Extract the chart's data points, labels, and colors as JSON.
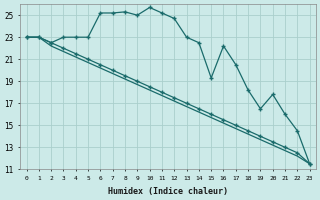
{
  "xlabel": "Humidex (Indice chaleur)",
  "background_color": "#cceae8",
  "grid_color": "#aacfcc",
  "line_color": "#1a6b6b",
  "xlim": [
    -0.5,
    23.5
  ],
  "ylim": [
    11,
    26
  ],
  "yticks": [
    11,
    13,
    15,
    17,
    19,
    21,
    23,
    25
  ],
  "xticks": [
    0,
    1,
    2,
    3,
    4,
    5,
    6,
    7,
    8,
    9,
    10,
    11,
    12,
    13,
    14,
    15,
    16,
    17,
    18,
    19,
    20,
    21,
    22,
    23
  ],
  "series1_x": [
    0,
    1,
    2,
    3,
    4,
    5,
    6,
    7,
    8,
    9,
    10,
    11,
    12,
    13,
    14,
    15,
    16,
    17,
    18,
    19,
    20,
    21,
    22,
    23
  ],
  "series1_y": [
    23,
    23,
    22.5,
    23,
    23,
    23,
    25.2,
    25.2,
    25.3,
    25,
    25.7,
    25.2,
    24.7,
    23,
    22.5,
    19.3,
    22.2,
    20.5,
    18.2,
    16.5,
    17.8,
    16,
    14.5,
    11.5
  ],
  "series2_x": [
    0,
    1,
    2,
    3,
    4,
    5,
    6,
    7,
    8,
    9,
    10,
    11,
    12,
    13,
    14,
    15,
    16,
    17,
    18,
    19,
    20,
    21,
    22,
    23
  ],
  "series2_y": [
    23,
    23,
    22.5,
    22,
    21.5,
    21,
    20.5,
    20,
    19.5,
    19,
    18.5,
    18,
    17.5,
    17,
    16.5,
    16,
    15.5,
    15,
    14.5,
    14,
    13.5,
    13,
    12.5,
    11.5
  ],
  "series3_x": [
    0,
    1,
    2,
    3,
    4,
    5,
    6,
    7,
    8,
    9,
    10,
    11,
    12,
    13,
    14,
    15,
    16,
    17,
    18,
    19,
    20,
    21,
    22,
    23
  ],
  "series3_y": [
    23,
    23,
    22.2,
    21.7,
    21.2,
    20.7,
    20.2,
    19.7,
    19.2,
    18.7,
    18.2,
    17.7,
    17.2,
    16.7,
    16.2,
    15.7,
    15.2,
    14.7,
    14.2,
    13.7,
    13.2,
    12.7,
    12.2,
    11.5
  ]
}
